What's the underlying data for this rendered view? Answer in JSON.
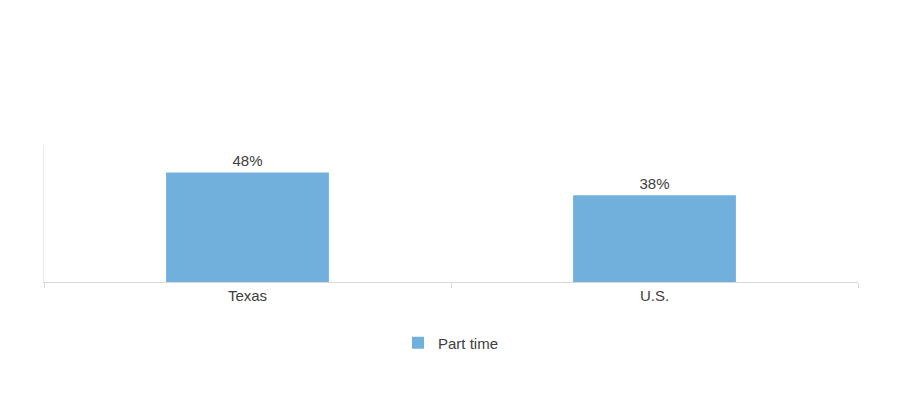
{
  "chart_data": {
    "type": "bar",
    "categories": [
      "Texas",
      "U.S."
    ],
    "series": [
      {
        "name": "Part time",
        "color": "#71afdd",
        "values": [
          48,
          38
        ],
        "value_labels": [
          "48%",
          "38%"
        ]
      }
    ],
    "ylim": [
      0,
      60
    ],
    "yticks": [],
    "grid": false,
    "legend": "bottom",
    "data_labels": true,
    "tick_labels": "x"
  }
}
